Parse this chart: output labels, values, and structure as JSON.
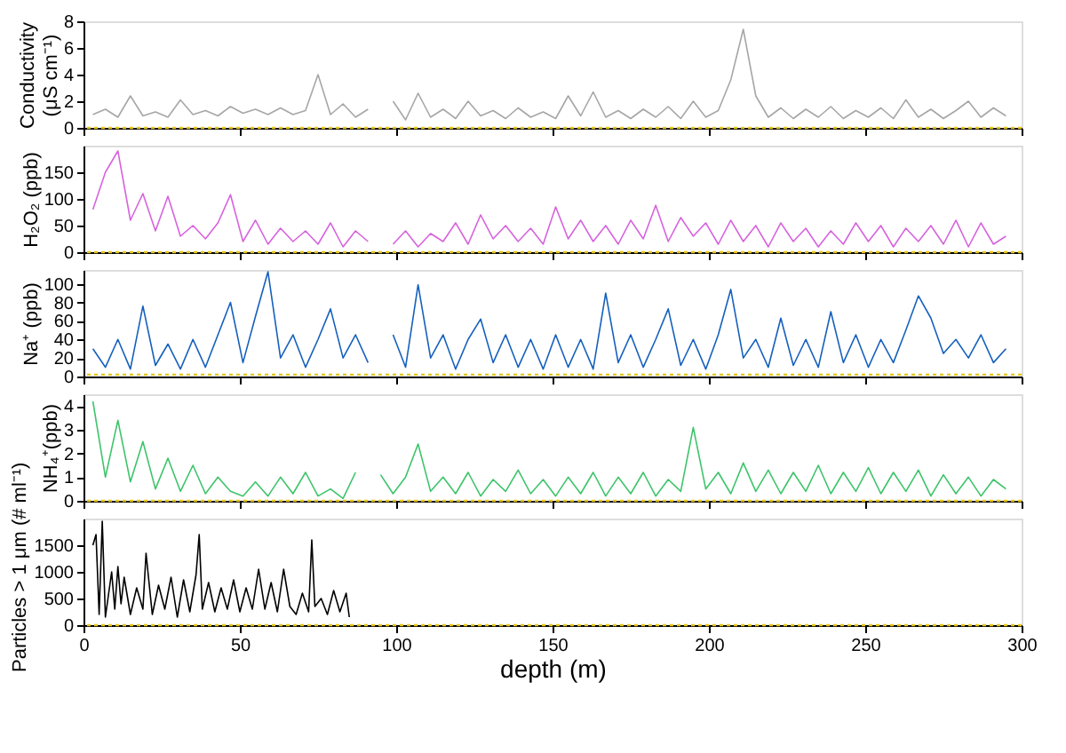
{
  "chart_data": [
    {
      "type": "line",
      "ylabel": "Conductivity\n(μS cm⁻¹)",
      "xlim": [
        0,
        300
      ],
      "xticks": [
        0,
        50,
        100,
        150,
        200,
        250,
        300
      ],
      "ylim": [
        0,
        8
      ],
      "yticks": [
        0,
        2,
        4,
        6,
        8
      ],
      "grid": false,
      "tick_labels": "y",
      "marker": "none",
      "line_style": "solid",
      "ref_lines": [
        {
          "axis": "y",
          "value": 0,
          "color": "#e6c619",
          "line_style": "dotted"
        }
      ],
      "series": [
        {
          "color": "#a6a6a6",
          "x": [
            3,
            7,
            11,
            15,
            19,
            23,
            27,
            31,
            35,
            39,
            43,
            47,
            51,
            55,
            59,
            63,
            67,
            71,
            75,
            79,
            83,
            87,
            91,
            95,
            99,
            103,
            107,
            111,
            115,
            119,
            123,
            127,
            131,
            135,
            139,
            143,
            147,
            151,
            155,
            159,
            163,
            167,
            171,
            175,
            179,
            183,
            187,
            191,
            195,
            199,
            203,
            207,
            211,
            215,
            219,
            223,
            227,
            231,
            235,
            239,
            243,
            247,
            251,
            255,
            259,
            263,
            267,
            271,
            275,
            279,
            283,
            287,
            291,
            295
          ],
          "values": [
            1.0,
            1.4,
            0.8,
            2.4,
            0.9,
            1.2,
            0.8,
            2.1,
            1.0,
            1.3,
            0.9,
            1.6,
            1.1,
            1.4,
            1.0,
            1.5,
            1.0,
            1.3,
            4.0,
            1.0,
            1.8,
            0.8,
            1.4,
            null,
            2.0,
            0.6,
            2.6,
            0.8,
            1.4,
            0.7,
            2.0,
            0.9,
            1.3,
            0.7,
            1.5,
            0.8,
            1.2,
            0.7,
            2.4,
            0.9,
            2.7,
            0.8,
            1.3,
            0.7,
            1.4,
            0.8,
            1.6,
            0.7,
            2.0,
            0.8,
            1.3,
            3.6,
            7.4,
            2.4,
            0.8,
            1.5,
            0.7,
            1.4,
            0.8,
            1.6,
            0.7,
            1.3,
            0.8,
            1.5,
            0.7,
            2.1,
            0.8,
            1.4,
            0.7,
            1.3,
            2.0,
            0.8,
            1.5,
            0.9
          ]
        }
      ]
    },
    {
      "type": "line",
      "ylabel": "H₂O₂ (ppb)",
      "xlim": [
        0,
        300
      ],
      "xticks": [
        0,
        50,
        100,
        150,
        200,
        250,
        300
      ],
      "ylim": [
        0,
        200
      ],
      "yticks": [
        0,
        50,
        100,
        150
      ],
      "grid": false,
      "tick_labels": "y",
      "marker": "none",
      "line_style": "solid",
      "ref_lines": [
        {
          "axis": "y",
          "value": 0,
          "color": "#e6c619",
          "line_style": "dotted"
        }
      ],
      "series": [
        {
          "color": "#d663de",
          "x": [
            3,
            7,
            11,
            15,
            19,
            23,
            27,
            31,
            35,
            39,
            43,
            47,
            51,
            55,
            59,
            63,
            67,
            71,
            75,
            79,
            83,
            87,
            91,
            95,
            99,
            103,
            107,
            111,
            115,
            119,
            123,
            127,
            131,
            135,
            139,
            143,
            147,
            151,
            155,
            159,
            163,
            167,
            171,
            175,
            179,
            183,
            187,
            191,
            195,
            199,
            203,
            207,
            211,
            215,
            219,
            223,
            227,
            231,
            235,
            239,
            243,
            247,
            251,
            255,
            259,
            263,
            267,
            271,
            275,
            279,
            283,
            287,
            291,
            295
          ],
          "values": [
            80,
            150,
            190,
            60,
            110,
            40,
            105,
            30,
            50,
            25,
            55,
            108,
            20,
            60,
            15,
            45,
            20,
            40,
            15,
            55,
            10,
            40,
            20,
            null,
            15,
            40,
            10,
            35,
            20,
            55,
            15,
            70,
            25,
            50,
            20,
            45,
            15,
            85,
            25,
            60,
            20,
            50,
            15,
            60,
            25,
            88,
            20,
            65,
            30,
            55,
            15,
            60,
            20,
            50,
            10,
            55,
            20,
            45,
            10,
            40,
            15,
            55,
            20,
            50,
            10,
            45,
            20,
            50,
            15,
            60,
            10,
            55,
            15,
            30
          ]
        }
      ]
    },
    {
      "type": "line",
      "ylabel": "Na⁺ (ppb)",
      "xlim": [
        0,
        300
      ],
      "xticks": [
        0,
        50,
        100,
        150,
        200,
        250,
        300
      ],
      "ylim": [
        0,
        115
      ],
      "yticks": [
        0,
        20,
        40,
        60,
        80,
        100
      ],
      "grid": false,
      "tick_labels": "y",
      "marker": "none",
      "line_style": "solid",
      "ref_lines": [
        {
          "axis": "y",
          "value": 2,
          "color": "#e6c619",
          "line_style": "dotted"
        }
      ],
      "series": [
        {
          "color": "#1560bd",
          "x": [
            3,
            7,
            11,
            15,
            19,
            23,
            27,
            31,
            35,
            39,
            43,
            47,
            51,
            55,
            59,
            63,
            67,
            71,
            75,
            79,
            83,
            87,
            91,
            95,
            99,
            103,
            107,
            111,
            115,
            119,
            123,
            127,
            131,
            135,
            139,
            143,
            147,
            151,
            155,
            159,
            163,
            167,
            171,
            175,
            179,
            183,
            187,
            191,
            195,
            199,
            203,
            207,
            211,
            215,
            219,
            223,
            227,
            231,
            235,
            239,
            243,
            247,
            251,
            255,
            259,
            263,
            267,
            271,
            275,
            279,
            283,
            287,
            291,
            295
          ],
          "values": [
            30,
            10,
            40,
            8,
            76,
            12,
            35,
            8,
            40,
            10,
            45,
            80,
            15,
            65,
            113,
            20,
            45,
            10,
            40,
            73,
            20,
            45,
            15,
            null,
            45,
            10,
            99,
            20,
            45,
            8,
            40,
            62,
            15,
            45,
            10,
            40,
            8,
            45,
            10,
            40,
            8,
            90,
            15,
            45,
            10,
            40,
            73,
            12,
            40,
            8,
            45,
            94,
            20,
            40,
            10,
            63,
            12,
            40,
            10,
            70,
            15,
            45,
            10,
            40,
            15,
            50,
            87,
            63,
            25,
            40,
            20,
            45,
            15,
            30
          ]
        }
      ]
    },
    {
      "type": "line",
      "ylabel": "NH₄⁺(ppb)",
      "xlim": [
        0,
        300
      ],
      "xticks": [
        0,
        50,
        100,
        150,
        200,
        250,
        300
      ],
      "ylim": [
        0,
        4.5
      ],
      "yticks": [
        0,
        1,
        2,
        3,
        4
      ],
      "grid": false,
      "tick_labels": "y",
      "marker": "none",
      "line_style": "solid",
      "ref_lines": [
        {
          "axis": "y",
          "value": 0,
          "color": "#e6c619",
          "line_style": "dotted"
        }
      ],
      "series": [
        {
          "color": "#3dc46a",
          "x": [
            3,
            7,
            11,
            15,
            19,
            23,
            27,
            31,
            35,
            39,
            43,
            47,
            51,
            55,
            59,
            63,
            67,
            71,
            75,
            79,
            83,
            87,
            91,
            95,
            99,
            103,
            107,
            111,
            115,
            119,
            123,
            127,
            131,
            135,
            139,
            143,
            147,
            151,
            155,
            159,
            163,
            167,
            171,
            175,
            179,
            183,
            187,
            191,
            195,
            199,
            203,
            207,
            211,
            215,
            219,
            223,
            227,
            231,
            235,
            239,
            243,
            247,
            251,
            255,
            259,
            263,
            267,
            271,
            275,
            279,
            283,
            287,
            291,
            295
          ],
          "values": [
            4.2,
            1.0,
            3.4,
            0.8,
            2.5,
            0.5,
            1.8,
            0.4,
            1.5,
            0.3,
            1.0,
            0.4,
            0.2,
            0.8,
            0.2,
            1.0,
            0.3,
            1.2,
            0.2,
            0.5,
            0.1,
            1.2,
            null,
            1.1,
            0.3,
            1.0,
            2.4,
            0.4,
            1.0,
            0.3,
            1.2,
            0.2,
            0.9,
            0.4,
            1.3,
            0.3,
            0.9,
            0.2,
            1.0,
            0.3,
            1.2,
            0.2,
            1.0,
            0.3,
            1.2,
            0.2,
            0.9,
            0.4,
            3.1,
            0.5,
            1.2,
            0.3,
            1.6,
            0.4,
            1.3,
            0.3,
            1.2,
            0.4,
            1.5,
            0.3,
            1.2,
            0.4,
            1.4,
            0.3,
            1.2,
            0.4,
            1.3,
            0.2,
            1.1,
            0.3,
            1.0,
            0.2,
            0.9,
            0.5
          ]
        }
      ]
    },
    {
      "type": "line",
      "xlabel": "depth (m)",
      "ylabel": "Particles > 1 μm (# ml⁻¹)",
      "xlim": [
        0,
        300
      ],
      "xticks": [
        0,
        50,
        100,
        150,
        200,
        250,
        300
      ],
      "ylim": [
        0,
        2000
      ],
      "yticks": [
        0,
        500,
        1000,
        1500
      ],
      "grid": false,
      "marker": "none",
      "line_style": "solid",
      "ref_lines": [
        {
          "axis": "y",
          "value": 0,
          "color": "#e6c619",
          "line_style": "dotted"
        }
      ],
      "series": [
        {
          "color": "#000000",
          "x": [
            3,
            4,
            5,
            6,
            7,
            9,
            10,
            11,
            12,
            13,
            15,
            17,
            19,
            20,
            22,
            24,
            26,
            28,
            30,
            32,
            34,
            36,
            37,
            38,
            40,
            42,
            44,
            46,
            48,
            50,
            52,
            54,
            56,
            58,
            60,
            62,
            64,
            66,
            68,
            70,
            72,
            73,
            74,
            76,
            78,
            80,
            82,
            84,
            85
          ],
          "values": [
            1500,
            1700,
            200,
            1950,
            150,
            1000,
            300,
            1100,
            400,
            900,
            200,
            700,
            300,
            1350,
            200,
            750,
            300,
            900,
            150,
            850,
            250,
            950,
            1700,
            300,
            800,
            250,
            700,
            300,
            850,
            250,
            700,
            300,
            1050,
            300,
            800,
            250,
            1050,
            350,
            200,
            600,
            250,
            1600,
            350,
            500,
            200,
            650,
            250,
            600,
            150
          ]
        }
      ]
    }
  ]
}
